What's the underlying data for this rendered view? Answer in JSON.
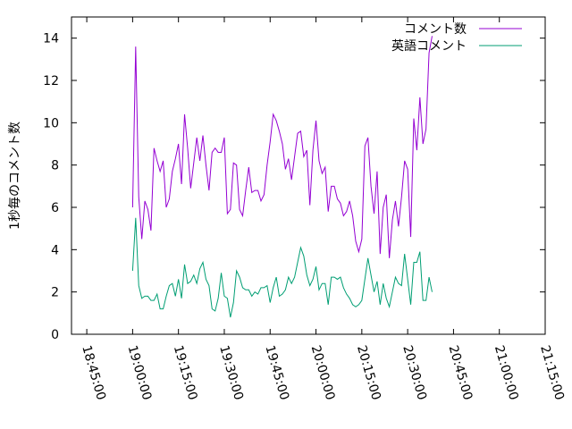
{
  "chart_data": {
    "type": "line",
    "ylabel": "1秒毎のコメント数",
    "ylim": [
      0,
      15
    ],
    "yticks": [
      0,
      2,
      4,
      6,
      8,
      10,
      12,
      14
    ],
    "xlim": [
      "18:40:00",
      "21:15:00"
    ],
    "xticks": [
      "18:45:00",
      "19:00:00",
      "19:15:00",
      "19:30:00",
      "19:45:00",
      "20:00:00",
      "20:15:00",
      "20:30:00",
      "20:45:00",
      "21:00:00",
      "21:15:00"
    ],
    "legend_position": "top-right",
    "grid": false,
    "x_start": "19:00:00",
    "x_step_seconds": 60,
    "series": [
      {
        "name": "コメント数",
        "color": "#9400d3",
        "values": [
          6.0,
          13.6,
          6.5,
          4.5,
          6.3,
          5.9,
          4.9,
          8.8,
          8.2,
          7.7,
          8.2,
          6.0,
          6.4,
          7.7,
          8.3,
          9.0,
          7.1,
          10.4,
          8.8,
          6.9,
          8.1,
          9.3,
          8.2,
          9.4,
          8.0,
          6.8,
          8.6,
          8.8,
          8.6,
          8.6,
          9.3,
          5.7,
          5.9,
          8.1,
          8.0,
          5.9,
          5.6,
          6.8,
          7.9,
          6.7,
          6.8,
          6.8,
          6.3,
          6.6,
          8.0,
          9.1,
          10.4,
          10.1,
          9.6,
          9.0,
          7.8,
          8.3,
          7.3,
          8.4,
          9.5,
          9.6,
          8.4,
          8.7,
          6.1,
          8.7,
          10.1,
          8.2,
          7.6,
          7.9,
          5.8,
          7.0,
          7.0,
          6.4,
          6.2,
          5.6,
          5.8,
          6.3,
          5.6,
          4.4,
          3.9,
          4.5,
          8.9,
          9.3,
          7.0,
          5.7,
          7.7,
          3.8,
          6.0,
          6.6,
          3.6,
          5.4,
          6.3,
          5.1,
          6.5,
          8.2,
          7.8,
          4.6,
          10.2,
          8.7,
          11.2,
          9.0,
          9.7,
          13.3,
          14.1
        ],
        "last_value_index_note": ""
      },
      {
        "name": "英語コメント",
        "color": "#009e73",
        "values": [
          3.0,
          5.5,
          2.3,
          1.7,
          1.8,
          1.8,
          1.6,
          1.6,
          1.9,
          1.2,
          1.2,
          1.8,
          2.3,
          2.4,
          1.8,
          2.6,
          1.7,
          3.3,
          2.4,
          2.5,
          2.8,
          2.4,
          3.1,
          3.4,
          2.6,
          2.3,
          1.2,
          1.1,
          1.7,
          2.9,
          1.8,
          1.7,
          0.8,
          1.5,
          3.0,
          2.7,
          2.2,
          2.1,
          2.1,
          1.8,
          2.0,
          1.9,
          2.2,
          2.2,
          2.3,
          1.5,
          2.2,
          2.7,
          1.8,
          1.9,
          2.1,
          2.7,
          2.4,
          2.7,
          3.4,
          4.1,
          3.7,
          2.8,
          2.3,
          2.6,
          3.2,
          2.1,
          2.4,
          2.4,
          1.4,
          2.7,
          2.7,
          2.6,
          2.7,
          2.2,
          1.9,
          1.7,
          1.4,
          1.3,
          1.4,
          1.6,
          2.6,
          3.6,
          2.8,
          2.0,
          2.5,
          1.4,
          2.4,
          1.7,
          1.3,
          2.0,
          2.7,
          2.4,
          2.3,
          3.8,
          2.6,
          1.4,
          3.4,
          3.4,
          3.9,
          1.6,
          1.6,
          2.7,
          2.0
        ]
      }
    ]
  }
}
